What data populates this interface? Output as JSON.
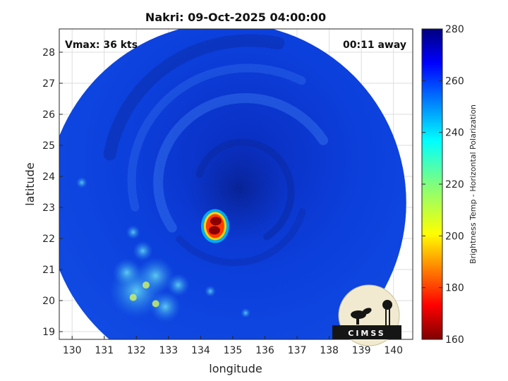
{
  "chart_data": {
    "type": "heatmap",
    "title": "Nakri: 09-Oct-2025 04:00:00",
    "xlabel": "longitude",
    "ylabel": "latitude",
    "xlim": [
      129.6,
      140.6
    ],
    "ylim": [
      18.75,
      28.75
    ],
    "xticks": [
      130,
      131,
      132,
      133,
      134,
      135,
      136,
      137,
      138,
      139,
      140
    ],
    "yticks": [
      19,
      20,
      21,
      22,
      23,
      24,
      25,
      26,
      27,
      28
    ],
    "grid": true,
    "colorbar": {
      "label": "Brightness Temp - Horizontal Polarization",
      "range": [
        160,
        280
      ],
      "ticks": [
        160,
        180,
        200,
        220,
        240,
        260,
        280
      ],
      "colormap": "jet"
    },
    "swath": {
      "center_lon": 134.8,
      "center_lat": 23.15,
      "radius_deg": 5.6
    },
    "features": [
      {
        "label": "convective core",
        "lon": 134.45,
        "lat": 22.4,
        "min_tb": 172
      },
      {
        "label": "storm center",
        "lon": 135.2,
        "lat": 23.6,
        "tb": 258
      }
    ],
    "annotations": {
      "vmax": "Vmax: 36 kts",
      "time_offset": "00:11 away"
    }
  },
  "logo": {
    "text": "CIMSS"
  }
}
